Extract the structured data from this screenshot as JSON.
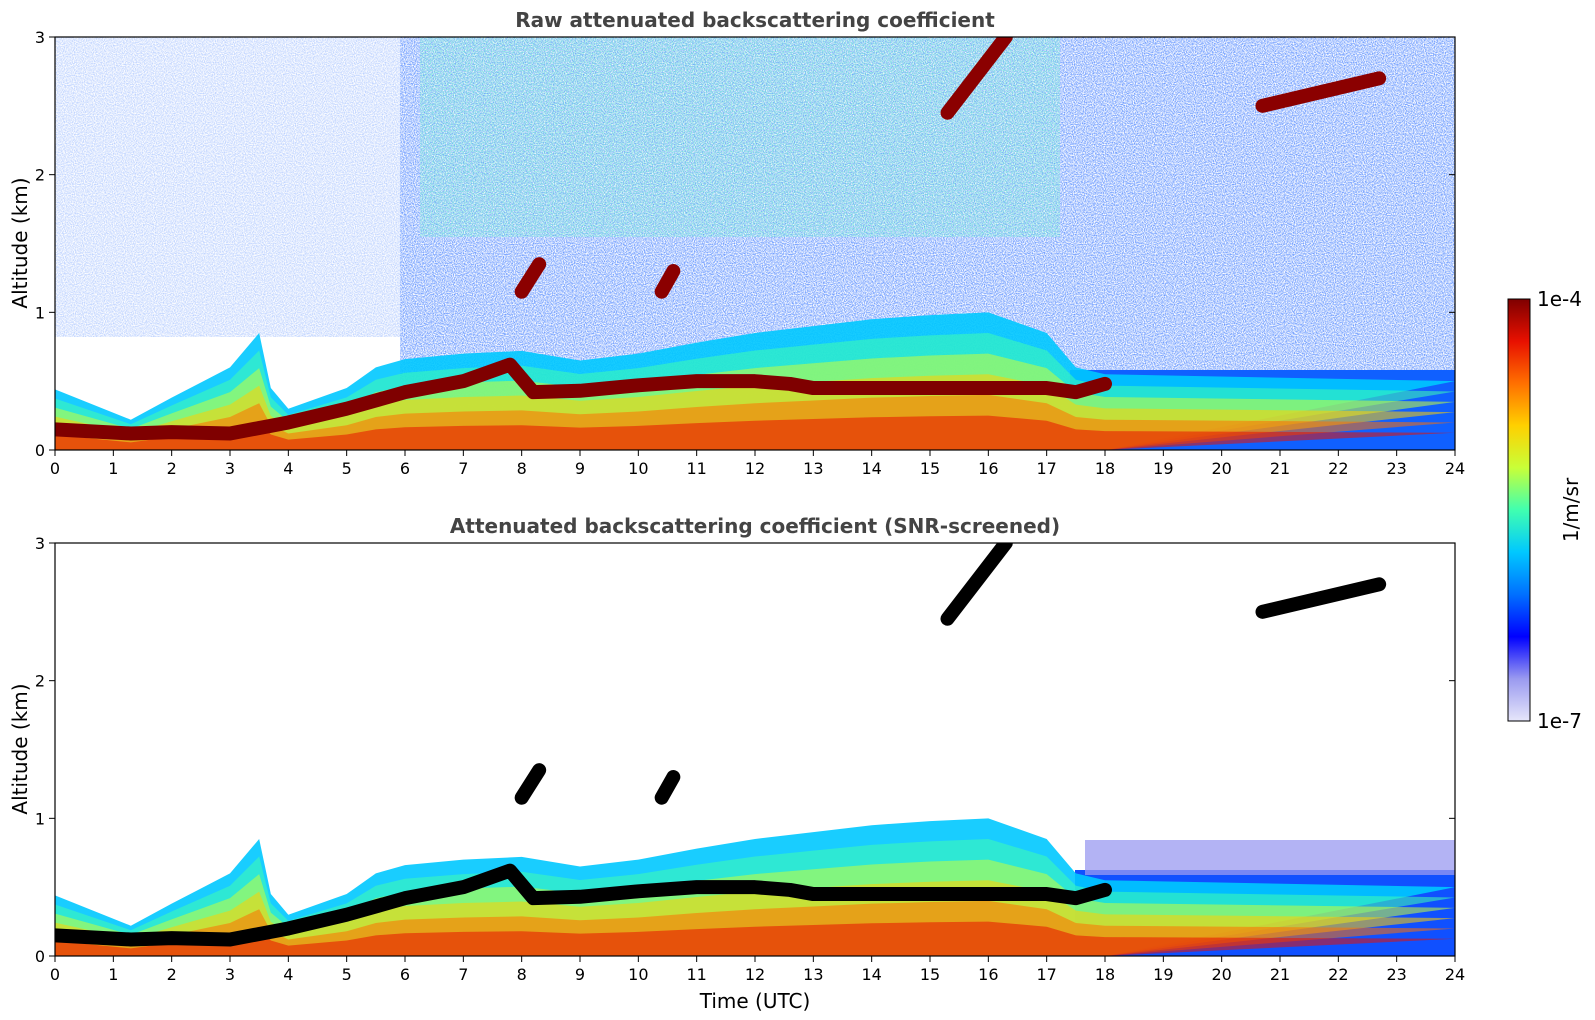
{
  "chart_data": [
    {
      "type": "heatmap",
      "title": "Raw attenuated backscattering coefficient",
      "xlabel": "",
      "ylabel": "Altitude (km)",
      "xlim": [
        0,
        24
      ],
      "ylim": [
        0,
        3
      ],
      "x_ticks": [
        "0",
        "1",
        "2",
        "3",
        "4",
        "5",
        "6",
        "7",
        "8",
        "9",
        "10",
        "11",
        "12",
        "13",
        "14",
        "15",
        "16",
        "17",
        "18",
        "19",
        "20",
        "21",
        "22",
        "23",
        "24"
      ],
      "y_ticks": [
        "0",
        "1",
        "2",
        "3"
      ],
      "boundary_layer_top_km": [
        [
          0,
          0.44
        ],
        [
          1.3,
          0.22
        ],
        [
          2,
          0.38
        ],
        [
          3,
          0.6
        ],
        [
          3.5,
          0.85
        ],
        [
          3.7,
          0.45
        ],
        [
          4,
          0.3
        ],
        [
          5,
          0.45
        ],
        [
          5.5,
          0.6
        ],
        [
          6,
          0.66
        ],
        [
          7,
          0.7
        ],
        [
          8,
          0.72
        ],
        [
          9,
          0.65
        ],
        [
          10,
          0.7
        ],
        [
          11,
          0.78
        ],
        [
          12,
          0.85
        ],
        [
          13,
          0.9
        ],
        [
          14,
          0.95
        ],
        [
          15,
          0.98
        ],
        [
          16,
          1.0
        ],
        [
          17,
          0.85
        ],
        [
          17.5,
          0.6
        ],
        [
          18,
          0.55
        ],
        [
          24,
          0.5
        ]
      ],
      "strong_layer_km": [
        [
          0,
          0.15
        ],
        [
          1.3,
          0.12
        ],
        [
          2,
          0.13
        ],
        [
          3,
          0.12
        ],
        [
          4,
          0.2
        ],
        [
          5,
          0.3
        ],
        [
          6,
          0.42
        ],
        [
          7,
          0.5
        ],
        [
          7.8,
          0.62
        ],
        [
          8.2,
          0.42
        ],
        [
          9,
          0.43
        ],
        [
          10,
          0.47
        ],
        [
          11,
          0.5
        ],
        [
          12,
          0.5
        ],
        [
          12.6,
          0.48
        ],
        [
          13,
          0.45
        ],
        [
          14,
          0.45
        ],
        [
          15,
          0.45
        ],
        [
          16,
          0.45
        ],
        [
          17,
          0.45
        ],
        [
          17.5,
          0.42
        ],
        [
          18,
          0.48
        ]
      ],
      "cloud_features": [
        {
          "start": 15.3,
          "end": 16.3,
          "alt_start": 2.45,
          "alt_end": 3.0
        },
        {
          "start": 20.7,
          "end": 22.7,
          "alt_start": 2.5,
          "alt_end": 2.7
        },
        {
          "start": 8.0,
          "end": 8.3,
          "alt_start": 1.15,
          "alt_end": 1.35
        },
        {
          "start": 10.4,
          "end": 10.6,
          "alt_start": 1.15,
          "alt_end": 1.3
        }
      ]
    },
    {
      "type": "heatmap",
      "title": "Attenuated backscattering coefficient (SNR-screened)",
      "xlabel": "Time (UTC)",
      "ylabel": "Altitude (km)",
      "xlim": [
        0,
        24
      ],
      "ylim": [
        0,
        3
      ],
      "x_ticks": [
        "0",
        "1",
        "2",
        "3",
        "4",
        "5",
        "6",
        "7",
        "8",
        "9",
        "10",
        "11",
        "12",
        "13",
        "14",
        "15",
        "16",
        "17",
        "18",
        "19",
        "20",
        "21",
        "22",
        "23",
        "24"
      ],
      "y_ticks": [
        "0",
        "1",
        "2",
        "3"
      ],
      "screened": true
    }
  ],
  "colorbar": {
    "max_label": "1e-4",
    "min_label": "1e-7",
    "label": "1/m/sr",
    "colors": [
      "#e6e6fa",
      "#9a9af0",
      "#0000ff",
      "#0070ff",
      "#00c8ff",
      "#40ffb0",
      "#c8ff38",
      "#ffd000",
      "#ff7000",
      "#e81000",
      "#7f0000"
    ]
  }
}
